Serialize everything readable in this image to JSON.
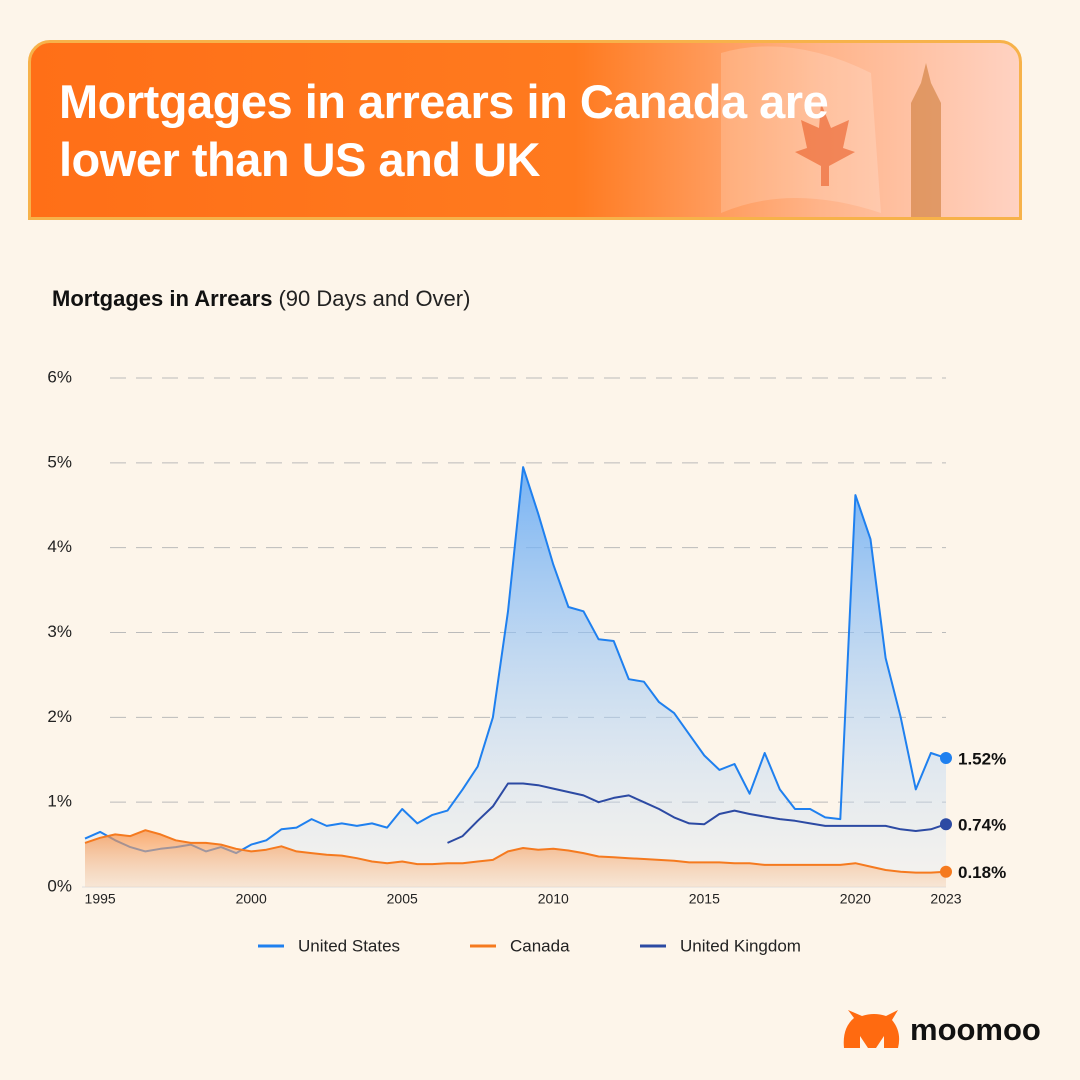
{
  "header": {
    "title": "Mortgages in arrears in Canada are lower than US and UK"
  },
  "brand": "moomoo",
  "chart_data": {
    "type": "area",
    "title": "Mortgages in Arrears",
    "subtitle": "(90 Days and Over)",
    "x": [
      1994.5,
      1995,
      1995.5,
      1996,
      1996.5,
      1997,
      1997.5,
      1998,
      1998.5,
      1999,
      1999.5,
      2000,
      2000.5,
      2001,
      2001.5,
      2002,
      2002.5,
      2003,
      2003.5,
      2004,
      2004.5,
      2005,
      2005.5,
      2006,
      2006.5,
      2007,
      2007.5,
      2008,
      2008.5,
      2009,
      2009.5,
      2010,
      2010.5,
      2011,
      2011.5,
      2012,
      2012.5,
      2013,
      2013.5,
      2014,
      2014.5,
      2015,
      2015.5,
      2016,
      2016.5,
      2017,
      2017.5,
      2018,
      2018.5,
      2019,
      2019.5,
      2020,
      2020.5,
      2021,
      2021.5,
      2022,
      2022.5,
      2023
    ],
    "series": [
      {
        "name": "United States",
        "color": "#1f80ef",
        "fill": true,
        "values": [
          0.57,
          0.65,
          0.55,
          0.47,
          0.42,
          0.45,
          0.47,
          0.5,
          0.42,
          0.47,
          0.4,
          0.5,
          0.55,
          0.68,
          0.7,
          0.8,
          0.72,
          0.75,
          0.72,
          0.75,
          0.7,
          0.92,
          0.75,
          0.85,
          0.9,
          1.15,
          1.42,
          2.0,
          3.25,
          4.95,
          4.4,
          3.8,
          3.3,
          3.25,
          2.92,
          2.9,
          2.45,
          2.42,
          2.18,
          2.05,
          1.8,
          1.55,
          1.38,
          1.45,
          1.1,
          1.58,
          1.15,
          0.92,
          0.92,
          0.82,
          0.8,
          4.62,
          4.1,
          2.7,
          2.0,
          1.15,
          1.58,
          1.52
        ],
        "value_labels": [
          null,
          null,
          null,
          null,
          null,
          null,
          null,
          null,
          null,
          null,
          null,
          null,
          null,
          null,
          null,
          null,
          null,
          null,
          null,
          null,
          null,
          null,
          null,
          null,
          null,
          null,
          null,
          null,
          null,
          null,
          null,
          null,
          null,
          null,
          null,
          null,
          null,
          null,
          null,
          null,
          null,
          null,
          null,
          null,
          null,
          null,
          null,
          null,
          null,
          null,
          null,
          null,
          null,
          null,
          null,
          null,
          null,
          "1.52%"
        ]
      },
      {
        "name": "Canada",
        "color": "#f57a1f",
        "fill": true,
        "values": [
          0.52,
          0.58,
          0.62,
          0.6,
          0.67,
          0.62,
          0.55,
          0.52,
          0.52,
          0.5,
          0.45,
          0.42,
          0.44,
          0.48,
          0.42,
          0.4,
          0.38,
          0.37,
          0.34,
          0.3,
          0.28,
          0.3,
          0.27,
          0.27,
          0.28,
          0.28,
          0.3,
          0.32,
          0.42,
          0.46,
          0.44,
          0.45,
          0.43,
          0.4,
          0.36,
          0.35,
          0.34,
          0.33,
          0.32,
          0.31,
          0.29,
          0.29,
          0.29,
          0.28,
          0.28,
          0.26,
          0.26,
          0.26,
          0.26,
          0.26,
          0.26,
          0.28,
          0.24,
          0.2,
          0.18,
          0.17,
          0.17,
          0.18
        ],
        "value_labels": [
          null,
          null,
          null,
          null,
          null,
          null,
          null,
          null,
          null,
          null,
          null,
          null,
          null,
          null,
          null,
          null,
          null,
          null,
          null,
          null,
          null,
          null,
          null,
          null,
          null,
          null,
          null,
          null,
          null,
          null,
          null,
          null,
          null,
          null,
          null,
          null,
          null,
          null,
          null,
          null,
          null,
          null,
          null,
          null,
          null,
          null,
          null,
          null,
          null,
          null,
          null,
          null,
          null,
          null,
          null,
          null,
          null,
          "0.18%"
        ]
      },
      {
        "name": "United Kingdom",
        "color": "#2c4aa3",
        "fill": false,
        "values": [
          null,
          null,
          null,
          null,
          null,
          null,
          null,
          null,
          null,
          null,
          null,
          null,
          null,
          null,
          null,
          null,
          null,
          null,
          null,
          null,
          null,
          null,
          null,
          null,
          0.52,
          0.6,
          0.78,
          0.95,
          1.22,
          1.22,
          1.2,
          1.16,
          1.12,
          1.08,
          1.0,
          1.05,
          1.08,
          1.0,
          0.92,
          0.82,
          0.75,
          0.74,
          0.86,
          0.9,
          0.86,
          0.83,
          0.8,
          0.78,
          0.75,
          0.72,
          0.72,
          0.72,
          0.72,
          0.72,
          0.68,
          0.66,
          0.68,
          0.74
        ],
        "value_labels": [
          null,
          null,
          null,
          null,
          null,
          null,
          null,
          null,
          null,
          null,
          null,
          null,
          null,
          null,
          null,
          null,
          null,
          null,
          null,
          null,
          null,
          null,
          null,
          null,
          null,
          null,
          null,
          null,
          null,
          null,
          null,
          null,
          null,
          null,
          null,
          null,
          null,
          null,
          null,
          null,
          null,
          null,
          null,
          null,
          null,
          null,
          null,
          null,
          null,
          null,
          null,
          null,
          null,
          null,
          null,
          null,
          null,
          "0.74%"
        ]
      }
    ],
    "xlim": [
      1994.4,
      2023
    ],
    "xticks": [
      1995,
      2000,
      2005,
      2010,
      2015,
      2020,
      2023
    ],
    "ylim": [
      0,
      6
    ],
    "yticks": [
      {
        "value": 0,
        "label": "0%"
      },
      {
        "value": 1,
        "label": "1%"
      },
      {
        "value": 2,
        "label": "2%"
      },
      {
        "value": 3,
        "label": "3%"
      },
      {
        "value": 4,
        "label": "4%"
      },
      {
        "value": 5,
        "label": "5%"
      },
      {
        "value": 6,
        "label": "6%"
      }
    ],
    "grid": true,
    "legend": "bottom"
  }
}
